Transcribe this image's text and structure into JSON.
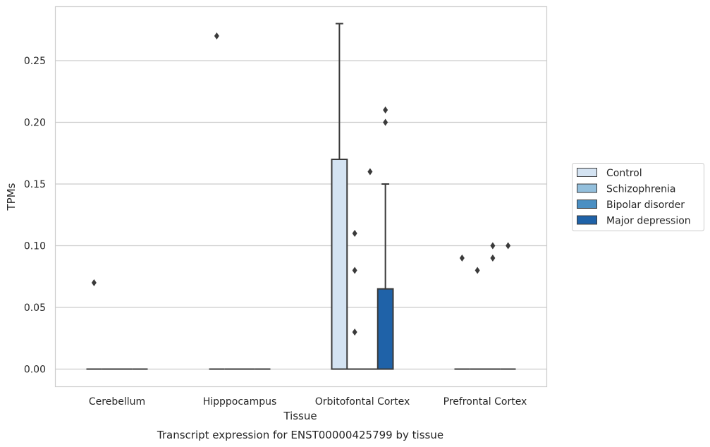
{
  "chart_data": {
    "type": "box",
    "title": "",
    "xlabel": "Tissue",
    "ylabel": "TPMs",
    "caption": "Transcript expression for ENST00000425799 by tissue",
    "ylim": [
      -0.014,
      0.294
    ],
    "yticks": [
      "0.00",
      "0.05",
      "0.10",
      "0.15",
      "0.20",
      "0.25"
    ],
    "grid": true,
    "legend_position": "right",
    "categories": [
      "Cerebellum",
      "Hipppocampus",
      "Orbitofontal Cortex",
      "Prefrontal Cortex"
    ],
    "series": [
      {
        "name": "Control",
        "color": "#d4e3f2",
        "boxes": [
          {
            "q1": 0.0,
            "median": 0.0,
            "q3": 0.0,
            "whisker_low": 0.0,
            "whisker_high": 0.0,
            "outliers": [
              0.07
            ]
          },
          {
            "q1": 0.0,
            "median": 0.0,
            "q3": 0.0,
            "whisker_low": 0.0,
            "whisker_high": 0.0,
            "outliers": [
              0.27
            ]
          },
          {
            "q1": 0.0,
            "median": 0.0,
            "q3": 0.17,
            "whisker_low": 0.0,
            "whisker_high": 0.28,
            "outliers": []
          },
          {
            "q1": 0.0,
            "median": 0.0,
            "q3": 0.0,
            "whisker_low": 0.0,
            "whisker_high": 0.0,
            "outliers": [
              0.09
            ]
          }
        ]
      },
      {
        "name": "Schizophrenia",
        "color": "#93bfdc",
        "boxes": [
          {
            "q1": 0.0,
            "median": 0.0,
            "q3": 0.0,
            "whisker_low": 0.0,
            "whisker_high": 0.0,
            "outliers": []
          },
          {
            "q1": 0.0,
            "median": 0.0,
            "q3": 0.0,
            "whisker_low": 0.0,
            "whisker_high": 0.0,
            "outliers": []
          },
          {
            "q1": 0.0,
            "median": 0.0,
            "q3": 0.0,
            "whisker_low": 0.0,
            "whisker_high": 0.0,
            "outliers": [
              0.11,
              0.08,
              0.03
            ]
          },
          {
            "q1": 0.0,
            "median": 0.0,
            "q3": 0.0,
            "whisker_low": 0.0,
            "whisker_high": 0.0,
            "outliers": [
              0.08
            ]
          }
        ]
      },
      {
        "name": "Bipolar disorder",
        "color": "#4a8fc3",
        "boxes": [
          {
            "q1": 0.0,
            "median": 0.0,
            "q3": 0.0,
            "whisker_low": 0.0,
            "whisker_high": 0.0,
            "outliers": []
          },
          {
            "q1": 0.0,
            "median": 0.0,
            "q3": 0.0,
            "whisker_low": 0.0,
            "whisker_high": 0.0,
            "outliers": []
          },
          {
            "q1": 0.0,
            "median": 0.0,
            "q3": 0.0,
            "whisker_low": 0.0,
            "whisker_high": 0.0,
            "outliers": [
              0.16
            ]
          },
          {
            "q1": 0.0,
            "median": 0.0,
            "q3": 0.0,
            "whisker_low": 0.0,
            "whisker_high": 0.0,
            "outliers": [
              0.1,
              0.09
            ]
          }
        ]
      },
      {
        "name": "Major depression",
        "color": "#1f62a8",
        "boxes": [
          {
            "q1": 0.0,
            "median": 0.0,
            "q3": 0.0,
            "whisker_low": 0.0,
            "whisker_high": 0.0,
            "outliers": []
          },
          {
            "q1": 0.0,
            "median": 0.0,
            "q3": 0.0,
            "whisker_low": 0.0,
            "whisker_high": 0.0,
            "outliers": []
          },
          {
            "q1": 0.0,
            "median": 0.0,
            "q3": 0.065,
            "whisker_low": 0.0,
            "whisker_high": 0.15,
            "outliers": [
              0.21,
              0.2
            ]
          },
          {
            "q1": 0.0,
            "median": 0.0,
            "q3": 0.0,
            "whisker_low": 0.0,
            "whisker_high": 0.0,
            "outliers": [
              0.1
            ]
          }
        ]
      }
    ],
    "colors": {
      "grid": "#cccccc",
      "frame": "#cccccc",
      "lines": "#3a3a3a",
      "legend_border": "#cccccc"
    }
  }
}
